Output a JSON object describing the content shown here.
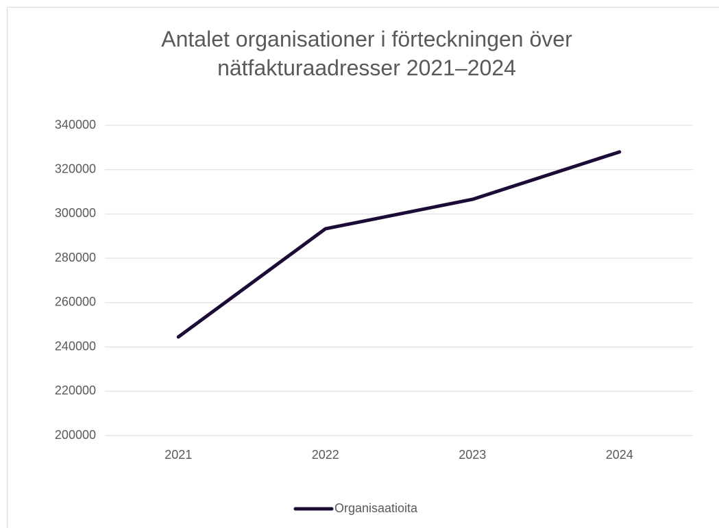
{
  "chart_data": {
    "type": "line",
    "title": "Antalet organisationer i förteckningen över nätfakturaadresser 2021–2024",
    "categories": [
      "2021",
      "2022",
      "2023",
      "2024"
    ],
    "series": [
      {
        "name": "Organisaatioita",
        "color": "#1c0b36",
        "values": [
          244500,
          293300,
          306600,
          328000
        ]
      }
    ],
    "ylim": [
      200000,
      340000
    ],
    "yticks": [
      200000,
      220000,
      240000,
      260000,
      280000,
      300000,
      320000,
      340000
    ],
    "grid": true,
    "legend": "bottom"
  }
}
